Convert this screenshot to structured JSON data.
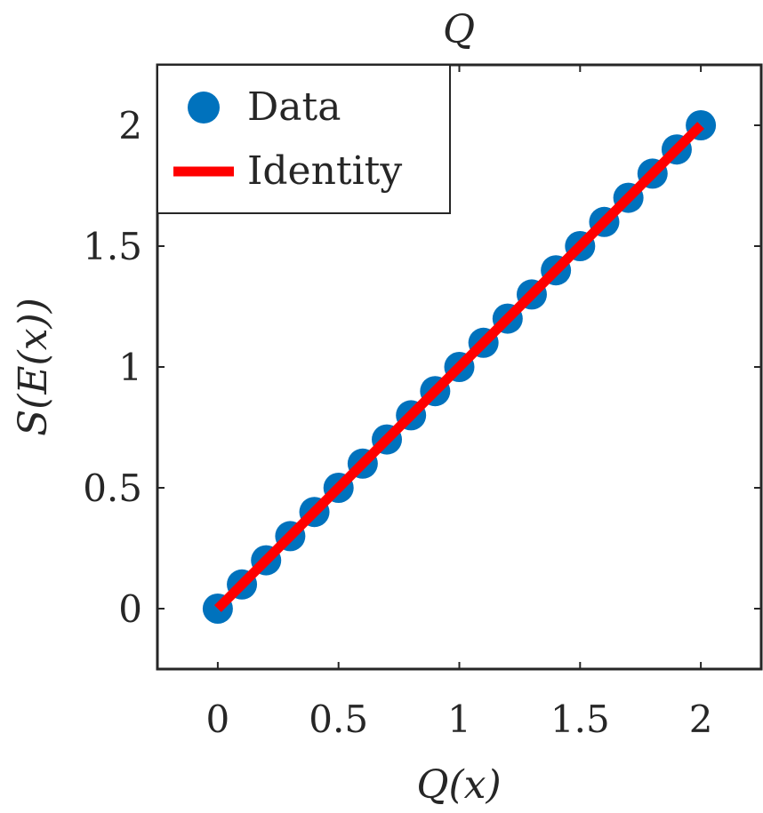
{
  "chart_data": {
    "type": "scatter",
    "title": "Q",
    "xlabel": "Q(x)",
    "ylabel": "S(E(x))",
    "xlim": [
      -0.25,
      2.25
    ],
    "ylim": [
      -0.25,
      2.25
    ],
    "xticks": [
      0,
      0.5,
      1,
      1.5,
      2
    ],
    "xtick_labels": [
      "0",
      "0.5",
      "1",
      "1.5",
      "2"
    ],
    "yticks": [
      0,
      0.5,
      1,
      1.5,
      2
    ],
    "ytick_labels": [
      "0",
      "0.5",
      "1",
      "1.5",
      "2"
    ],
    "legend_position": "top-left",
    "grid": false,
    "series": [
      {
        "name": "Data",
        "kind": "scatter",
        "color": "#0072BD",
        "x": [
          0,
          0.1,
          0.2,
          0.3,
          0.4,
          0.5,
          0.6,
          0.7,
          0.8,
          0.9,
          1.0,
          1.1,
          1.2,
          1.3,
          1.4,
          1.5,
          1.6,
          1.7,
          1.8,
          1.9,
          2.0
        ],
        "y": [
          0,
          0.1,
          0.2,
          0.3,
          0.4,
          0.5,
          0.6,
          0.7,
          0.8,
          0.9,
          1.0,
          1.1,
          1.2,
          1.3,
          1.4,
          1.5,
          1.6,
          1.7,
          1.8,
          1.9,
          2.0
        ]
      },
      {
        "name": "Identity",
        "kind": "line",
        "color": "#FF0000",
        "x": [
          0,
          2
        ],
        "y": [
          0,
          2
        ]
      }
    ]
  }
}
